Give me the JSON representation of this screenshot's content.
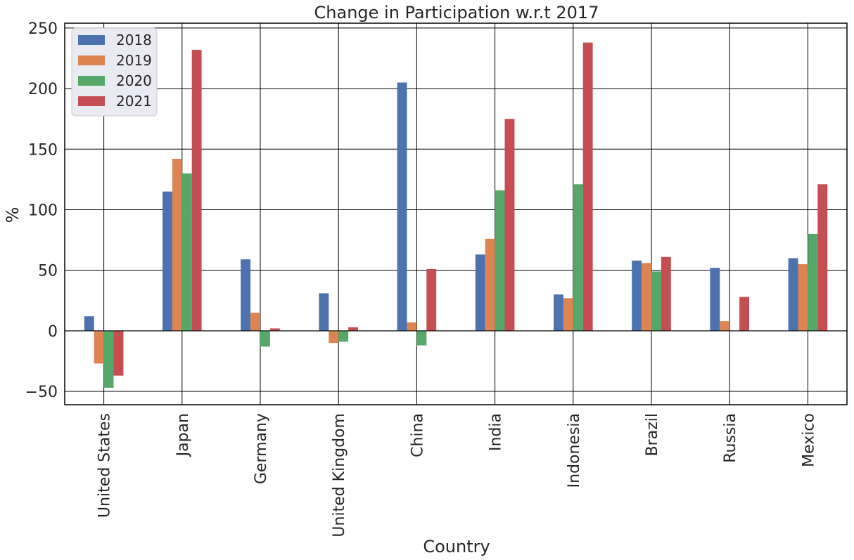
{
  "chart_data": {
    "type": "bar",
    "title": "Change in Participation w.r.t 2017",
    "xlabel": "Country",
    "ylabel": "%",
    "categories": [
      "United States",
      "Japan",
      "Germany",
      "United Kingdom",
      "China",
      "India",
      "Indonesia",
      "Brazil",
      "Russia",
      "Mexico"
    ],
    "series": [
      {
        "name": "2018",
        "color": "#4c72b0",
        "values": [
          12,
          115,
          59,
          31,
          205,
          63,
          30,
          58,
          52,
          60
        ]
      },
      {
        "name": "2019",
        "color": "#dd8452",
        "values": [
          -27,
          142,
          15,
          -10,
          7,
          76,
          27,
          56,
          8,
          55
        ]
      },
      {
        "name": "2020",
        "color": "#55a868",
        "values": [
          -47,
          130,
          -13,
          -9,
          -12,
          116,
          121,
          49,
          0,
          80
        ]
      },
      {
        "name": "2021",
        "color": "#c44e52",
        "values": [
          -37,
          232,
          2,
          3,
          51,
          175,
          238,
          61,
          28,
          121
        ]
      }
    ],
    "ylim": [
      -61,
      254
    ],
    "yticks": [
      "−50",
      "0",
      "50",
      "100",
      "150",
      "200",
      "250"
    ],
    "grid": true,
    "legend_position": "top-left"
  }
}
